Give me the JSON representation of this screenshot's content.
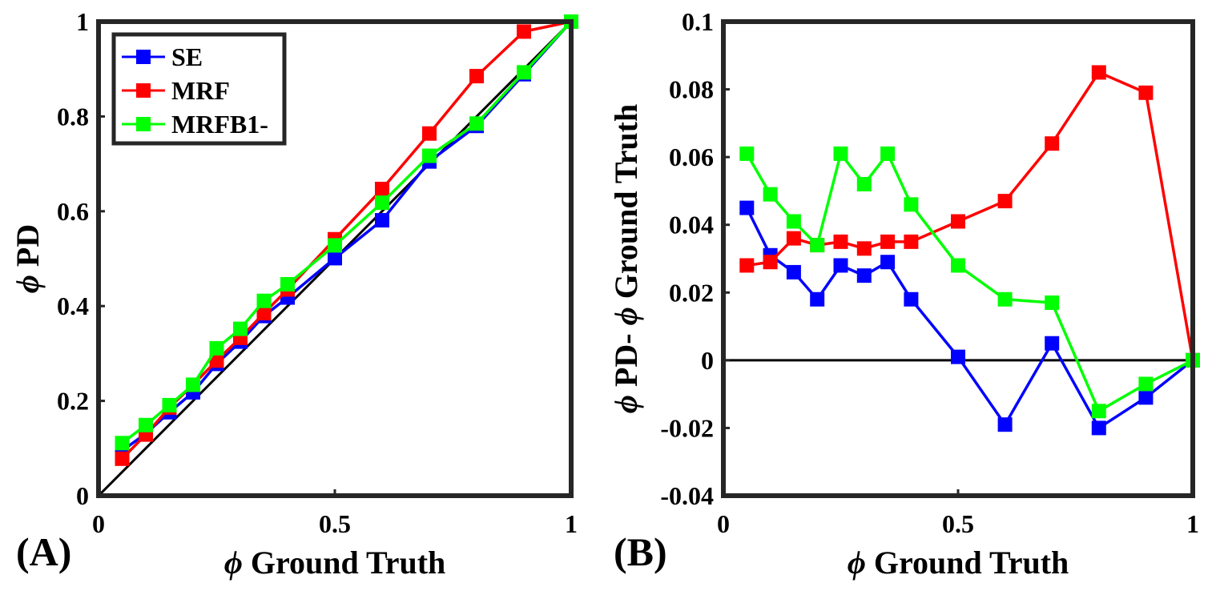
{
  "chart_data": [
    {
      "type": "line",
      "panel": "(A)",
      "xlabel_symbol": "ϕ",
      "xlabel": "Ground Truth",
      "ylabel_symbol": "ϕ",
      "ylabel": "PD",
      "xlim": [
        0,
        1
      ],
      "ylim": [
        0,
        1
      ],
      "xticks": [
        0,
        0.5,
        1
      ],
      "xtick_labels": [
        "0",
        "0.5",
        "1"
      ],
      "yticks": [
        0,
        0.2,
        0.4,
        0.6,
        0.8,
        1
      ],
      "ytick_labels": [
        "0",
        "0.2",
        "0.4",
        "0.6",
        "0.8",
        "1"
      ],
      "x": [
        0.05,
        0.1,
        0.15,
        0.2,
        0.25,
        0.3,
        0.35,
        0.4,
        0.5,
        0.6,
        0.7,
        0.8,
        0.9,
        1.0
      ],
      "reference_line": {
        "from": [
          0,
          0
        ],
        "to": [
          1,
          1
        ],
        "color": "#000000"
      },
      "legend_position": "top-left",
      "series": [
        {
          "name": "SE",
          "color": "#0000ff",
          "values": [
            0.095,
            0.131,
            0.176,
            0.218,
            0.278,
            0.325,
            0.379,
            0.418,
            0.501,
            0.581,
            0.705,
            0.78,
            0.889,
            1.0
          ]
        },
        {
          "name": "MRF",
          "color": "#ff0000",
          "values": [
            0.078,
            0.129,
            0.186,
            0.234,
            0.285,
            0.333,
            0.385,
            0.435,
            0.541,
            0.647,
            0.764,
            0.885,
            0.979,
            1.0
          ]
        },
        {
          "name": "MRFB1-",
          "color": "#00ff00",
          "values": [
            0.111,
            0.149,
            0.191,
            0.234,
            0.311,
            0.352,
            0.411,
            0.446,
            0.528,
            0.618,
            0.717,
            0.785,
            0.893,
            1.0
          ]
        }
      ]
    },
    {
      "type": "line",
      "panel": "(B)",
      "xlabel_symbol": "ϕ",
      "xlabel": "Ground Truth",
      "ylabel_symbol1": "ϕ",
      "ylabel_mid": "PD-",
      "ylabel_symbol2": "ϕ",
      "ylabel_end": "Ground Truth",
      "xlim": [
        0,
        1
      ],
      "ylim": [
        -0.04,
        0.1
      ],
      "xticks": [
        0,
        0.5,
        1
      ],
      "xtick_labels": [
        "0",
        "0.5",
        "1"
      ],
      "yticks": [
        -0.04,
        -0.02,
        0,
        0.02,
        0.04,
        0.06,
        0.08,
        0.1
      ],
      "ytick_labels": [
        "-0.04",
        "-0.02",
        "0",
        "0.02",
        "0.04",
        "0.06",
        "0.08",
        "0.1"
      ],
      "x": [
        0.05,
        0.1,
        0.15,
        0.2,
        0.25,
        0.3,
        0.35,
        0.4,
        0.5,
        0.6,
        0.7,
        0.8,
        0.9,
        1.0
      ],
      "reference_line": {
        "from": [
          0,
          0
        ],
        "to": [
          1,
          0
        ],
        "color": "#000000"
      },
      "series": [
        {
          "name": "SE",
          "color": "#0000ff",
          "values": [
            0.045,
            0.031,
            0.026,
            0.018,
            0.028,
            0.025,
            0.029,
            0.018,
            0.001,
            -0.019,
            0.005,
            -0.02,
            -0.011,
            0.0
          ]
        },
        {
          "name": "MRF",
          "color": "#ff0000",
          "values": [
            0.028,
            0.029,
            0.036,
            0.034,
            0.035,
            0.033,
            0.035,
            0.035,
            0.041,
            0.047,
            0.064,
            0.085,
            0.079,
            0.0
          ]
        },
        {
          "name": "MRFB1-",
          "color": "#00ff00",
          "values": [
            0.061,
            0.049,
            0.041,
            0.034,
            0.061,
            0.052,
            0.061,
            0.046,
            0.028,
            0.018,
            0.017,
            -0.015,
            -0.007,
            0.0
          ]
        }
      ]
    }
  ]
}
